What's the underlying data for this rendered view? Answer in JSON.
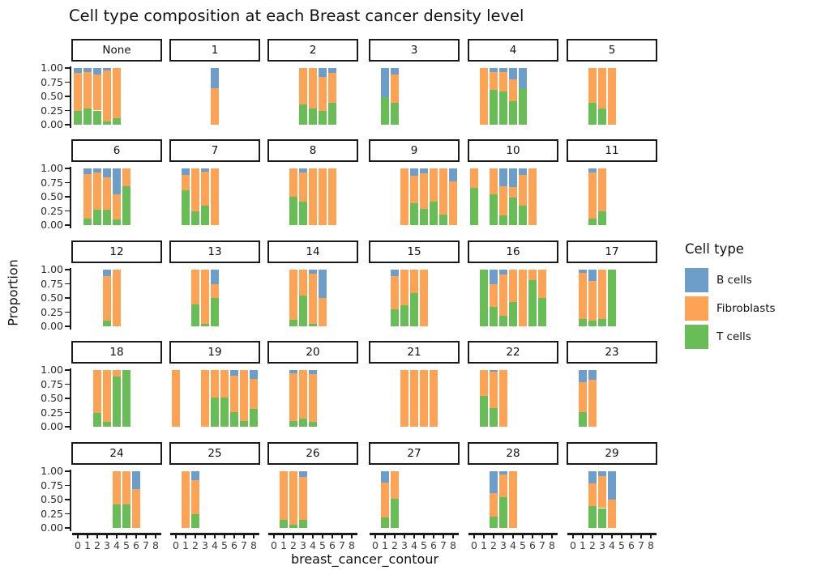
{
  "title": "Cell type composition at each Breast cancer density level",
  "axes": {
    "x_label": "breast_cancer_contour",
    "y_label": "Proportion",
    "y_tick_labels": [
      "1.00",
      "0.75",
      "0.50",
      "0.25",
      "0.00"
    ],
    "x_tick_labels": [
      "0",
      "1",
      "2",
      "3",
      "4",
      "5",
      "6",
      "7",
      "8"
    ]
  },
  "legend": {
    "title": "Cell type",
    "items": [
      {
        "label": "B cells",
        "color": "#6d9eca"
      },
      {
        "label": "Fibroblasts",
        "color": "#fca356"
      },
      {
        "label": "T cells",
        "color": "#69bd56"
      }
    ]
  },
  "chart_data": {
    "type": "bar",
    "stacked": true,
    "faceted": true,
    "title": "Cell type composition at each Breast cancer density level",
    "xlabel": "breast_cancer_contour",
    "ylabel": "Proportion",
    "xlim": [
      0,
      8
    ],
    "ylim": [
      0,
      1
    ],
    "grid": false,
    "legend_position": "right",
    "stack_order_bottom_to_top": [
      "T cells",
      "Fibroblasts",
      "B cells"
    ],
    "bar_format": "[x, T cells, Fibroblasts, B cells] as proportions 0-1",
    "facets": [
      {
        "label": "None",
        "bars": [
          [
            0,
            0.24,
            0.67,
            0.09
          ],
          [
            1,
            0.29,
            0.64,
            0.07
          ],
          [
            2,
            0.25,
            0.63,
            0.12
          ],
          [
            3,
            0.06,
            0.9,
            0.04
          ],
          [
            4,
            0.11,
            0.89,
            0
          ]
        ]
      },
      {
        "label": "1",
        "bars": [
          [
            4,
            0,
            0.65,
            0.35
          ]
        ]
      },
      {
        "label": "2",
        "bars": [
          [
            3,
            0.36,
            0.64,
            0
          ],
          [
            4,
            0.29,
            0.71,
            0
          ],
          [
            5,
            0.25,
            0.6,
            0.15
          ],
          [
            6,
            0.38,
            0.54,
            0.08
          ]
        ]
      },
      {
        "label": "3",
        "bars": [
          [
            1,
            0.48,
            0,
            0.52
          ],
          [
            2,
            0.38,
            0.5,
            0.12
          ]
        ]
      },
      {
        "label": "4",
        "bars": [
          [
            1,
            0,
            1,
            0
          ],
          [
            2,
            0.62,
            0.31,
            0.07
          ],
          [
            3,
            0.58,
            0.35,
            0.07
          ],
          [
            4,
            0.42,
            0.38,
            0.2
          ],
          [
            5,
            0.65,
            0,
            0.35
          ]
        ]
      },
      {
        "label": "5",
        "bars": [
          [
            2,
            0.38,
            0.62,
            0
          ],
          [
            3,
            0.28,
            0.72,
            0
          ],
          [
            4,
            0,
            1,
            0
          ]
        ]
      },
      {
        "label": "6",
        "bars": [
          [
            1,
            0.12,
            0.78,
            0.1
          ],
          [
            2,
            0.27,
            0.66,
            0.07
          ],
          [
            3,
            0.27,
            0.58,
            0.15
          ],
          [
            4,
            0.1,
            0.45,
            0.45
          ],
          [
            5,
            0.68,
            0.32,
            0
          ]
        ]
      },
      {
        "label": "7",
        "bars": [
          [
            1,
            0.62,
            0.26,
            0.12
          ],
          [
            2,
            0.25,
            0.75,
            0
          ],
          [
            3,
            0.35,
            0.6,
            0.05
          ],
          [
            4,
            0,
            1,
            0
          ]
        ]
      },
      {
        "label": "8",
        "bars": [
          [
            2,
            0.5,
            0.5,
            0
          ],
          [
            3,
            0.42,
            0.51,
            0.07
          ],
          [
            4,
            0,
            1,
            0
          ],
          [
            5,
            0,
            1,
            0
          ],
          [
            6,
            0,
            1,
            0
          ]
        ]
      },
      {
        "label": "9",
        "bars": [
          [
            3,
            0,
            1,
            0
          ],
          [
            4,
            0.38,
            0.49,
            0.13
          ],
          [
            5,
            0.29,
            0.62,
            0.09
          ],
          [
            6,
            0.42,
            0.58,
            0
          ],
          [
            7,
            0.18,
            0.82,
            0
          ],
          [
            8,
            0,
            0.77,
            0.23
          ]
        ]
      },
      {
        "label": "10",
        "bars": [
          [
            0,
            0.66,
            0.34,
            0
          ],
          [
            2,
            0.55,
            0.45,
            0
          ],
          [
            3,
            0.17,
            0.51,
            0.32
          ],
          [
            4,
            0.48,
            0.19,
            0.33
          ],
          [
            5,
            0.34,
            0.55,
            0.11
          ],
          [
            6,
            0,
            1,
            0
          ]
        ]
      },
      {
        "label": "11",
        "bars": [
          [
            2,
            0.12,
            0.81,
            0.07
          ],
          [
            3,
            0.25,
            0.75,
            0
          ]
        ]
      },
      {
        "label": "12",
        "bars": [
          [
            3,
            0.1,
            0.78,
            0.12
          ],
          [
            4,
            0,
            1,
            0
          ]
        ]
      },
      {
        "label": "13",
        "bars": [
          [
            2,
            0.38,
            0.62,
            0
          ],
          [
            3,
            0.05,
            0.95,
            0
          ],
          [
            4,
            0.5,
            0.25,
            0.25
          ]
        ]
      },
      {
        "label": "14",
        "bars": [
          [
            2,
            0.12,
            0.88,
            0
          ],
          [
            3,
            0.55,
            0.45,
            0
          ],
          [
            4,
            0.04,
            0.89,
            0.07
          ],
          [
            5,
            0,
            0.5,
            0.5
          ]
        ]
      },
      {
        "label": "15",
        "bars": [
          [
            2,
            0.3,
            0.58,
            0.12
          ],
          [
            3,
            0.37,
            0.63,
            0
          ],
          [
            4,
            0.58,
            0.42,
            0
          ],
          [
            5,
            0,
            1,
            0
          ]
        ]
      },
      {
        "label": "16",
        "bars": [
          [
            1,
            1,
            0,
            0
          ],
          [
            2,
            0.34,
            0.41,
            0.25
          ],
          [
            3,
            0.18,
            0.74,
            0.08
          ],
          [
            4,
            0.43,
            0.57,
            0
          ],
          [
            5,
            0,
            1,
            0
          ],
          [
            6,
            0.81,
            0.19,
            0
          ],
          [
            7,
            0.5,
            0.5,
            0
          ]
        ]
      },
      {
        "label": "17",
        "bars": [
          [
            1,
            0.13,
            0.82,
            0.05
          ],
          [
            2,
            0.1,
            0.7,
            0.2
          ],
          [
            3,
            0.13,
            0.87,
            0
          ],
          [
            4,
            1,
            0,
            0
          ]
        ]
      },
      {
        "label": "18",
        "bars": [
          [
            2,
            0.25,
            0.75,
            0
          ],
          [
            3,
            0.08,
            0.92,
            0
          ],
          [
            4,
            0.88,
            0.12,
            0
          ],
          [
            5,
            1,
            0,
            0
          ]
        ]
      },
      {
        "label": "19",
        "bars": [
          [
            0,
            0,
            1,
            0
          ],
          [
            3,
            0,
            1,
            0
          ],
          [
            4,
            0.51,
            0.49,
            0
          ],
          [
            5,
            0.51,
            0.49,
            0
          ],
          [
            6,
            0.26,
            0.64,
            0.1
          ],
          [
            7,
            0.1,
            0.9,
            0
          ],
          [
            8,
            0.32,
            0.52,
            0.16
          ]
        ]
      },
      {
        "label": "20",
        "bars": [
          [
            2,
            0.1,
            0.85,
            0.05
          ],
          [
            3,
            0.14,
            0.86,
            0
          ],
          [
            4,
            0.09,
            0.84,
            0.07
          ]
        ]
      },
      {
        "label": "21",
        "bars": [
          [
            3,
            0,
            1,
            0
          ],
          [
            4,
            0,
            1,
            0
          ],
          [
            5,
            0,
            1,
            0
          ],
          [
            6,
            0,
            1,
            0
          ]
        ]
      },
      {
        "label": "22",
        "bars": [
          [
            1,
            0.55,
            0.45,
            0
          ],
          [
            2,
            0.33,
            0.64,
            0.03
          ],
          [
            3,
            0,
            1,
            0
          ]
        ]
      },
      {
        "label": "23",
        "bars": [
          [
            1,
            0.26,
            0.52,
            0.22
          ],
          [
            2,
            0,
            0.83,
            0.17
          ]
        ]
      },
      {
        "label": "24",
        "bars": [
          [
            4,
            0.42,
            0.58,
            0
          ],
          [
            5,
            0.42,
            0.58,
            0
          ],
          [
            6,
            0,
            0.68,
            0.32
          ]
        ]
      },
      {
        "label": "25",
        "bars": [
          [
            1,
            0,
            1,
            0
          ],
          [
            2,
            0.25,
            0.6,
            0.15
          ]
        ]
      },
      {
        "label": "26",
        "bars": [
          [
            1,
            0.14,
            0.86,
            0
          ],
          [
            2,
            0.06,
            0.94,
            0
          ],
          [
            3,
            0.14,
            0.76,
            0.1
          ]
        ]
      },
      {
        "label": "27",
        "bars": [
          [
            1,
            0.18,
            0.62,
            0.2
          ],
          [
            2,
            0.52,
            0.48,
            0
          ]
        ]
      },
      {
        "label": "28",
        "bars": [
          [
            2,
            0.2,
            0.42,
            0.38
          ],
          [
            3,
            0.55,
            0.4,
            0.05
          ],
          [
            4,
            0,
            1,
            0
          ]
        ]
      },
      {
        "label": "29",
        "bars": [
          [
            2,
            0.38,
            0.4,
            0.22
          ],
          [
            3,
            0.35,
            0.57,
            0.08
          ],
          [
            4,
            0,
            0.5,
            0.5
          ]
        ]
      }
    ]
  }
}
